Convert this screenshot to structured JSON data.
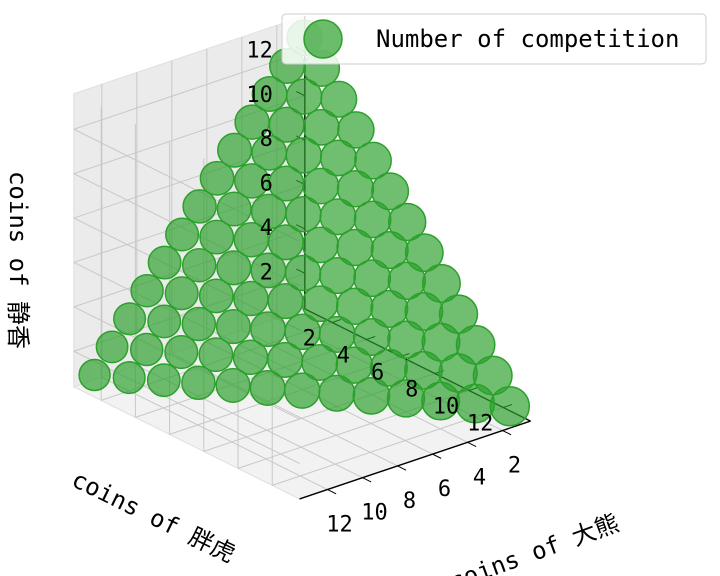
{
  "chart_data": {
    "type": "scatter",
    "projection": "3d",
    "title": "",
    "xlabel": "coins of 胖虎",
    "ylabel": "coins of 大熊",
    "zlabel": "coins of 静香",
    "xticks": [
      "2",
      "4",
      "6",
      "8",
      "10",
      "12"
    ],
    "yticks": [
      "2",
      "4",
      "6",
      "8",
      "10",
      "12"
    ],
    "zticks": [
      "2",
      "4",
      "6",
      "8",
      "10",
      "12"
    ],
    "grid": true,
    "legend": {
      "position": "top-right",
      "entries": [
        "Number of competition"
      ]
    },
    "series": [
      {
        "name": "Number of competition",
        "color": "#2ca02c",
        "marker": "circle",
        "constraint": "x + y + z = 15",
        "points": [
          [
            1,
            1,
            13
          ],
          [
            1,
            2,
            12
          ],
          [
            1,
            3,
            11
          ],
          [
            1,
            4,
            10
          ],
          [
            1,
            5,
            9
          ],
          [
            1,
            6,
            8
          ],
          [
            1,
            7,
            7
          ],
          [
            1,
            8,
            6
          ],
          [
            1,
            9,
            5
          ],
          [
            1,
            10,
            4
          ],
          [
            1,
            11,
            3
          ],
          [
            1,
            12,
            2
          ],
          [
            1,
            13,
            1
          ],
          [
            2,
            1,
            12
          ],
          [
            2,
            2,
            11
          ],
          [
            2,
            3,
            10
          ],
          [
            2,
            4,
            9
          ],
          [
            2,
            5,
            8
          ],
          [
            2,
            6,
            7
          ],
          [
            2,
            7,
            6
          ],
          [
            2,
            8,
            5
          ],
          [
            2,
            9,
            4
          ],
          [
            2,
            10,
            3
          ],
          [
            2,
            11,
            2
          ],
          [
            2,
            12,
            1
          ],
          [
            3,
            1,
            11
          ],
          [
            3,
            2,
            10
          ],
          [
            3,
            3,
            9
          ],
          [
            3,
            4,
            8
          ],
          [
            3,
            5,
            7
          ],
          [
            3,
            6,
            6
          ],
          [
            3,
            7,
            5
          ],
          [
            3,
            8,
            4
          ],
          [
            3,
            9,
            3
          ],
          [
            3,
            10,
            2
          ],
          [
            3,
            11,
            1
          ],
          [
            4,
            1,
            10
          ],
          [
            4,
            2,
            9
          ],
          [
            4,
            3,
            8
          ],
          [
            4,
            4,
            7
          ],
          [
            4,
            5,
            6
          ],
          [
            4,
            6,
            5
          ],
          [
            4,
            7,
            4
          ],
          [
            4,
            8,
            3
          ],
          [
            4,
            9,
            2
          ],
          [
            4,
            10,
            1
          ],
          [
            5,
            1,
            9
          ],
          [
            5,
            2,
            8
          ],
          [
            5,
            3,
            7
          ],
          [
            5,
            4,
            6
          ],
          [
            5,
            5,
            5
          ],
          [
            5,
            6,
            4
          ],
          [
            5,
            7,
            3
          ],
          [
            5,
            8,
            2
          ],
          [
            5,
            9,
            1
          ],
          [
            6,
            1,
            8
          ],
          [
            6,
            2,
            7
          ],
          [
            6,
            3,
            6
          ],
          [
            6,
            4,
            5
          ],
          [
            6,
            5,
            4
          ],
          [
            6,
            6,
            3
          ],
          [
            6,
            7,
            2
          ],
          [
            6,
            8,
            1
          ],
          [
            7,
            1,
            7
          ],
          [
            7,
            2,
            6
          ],
          [
            7,
            3,
            5
          ],
          [
            7,
            4,
            4
          ],
          [
            7,
            5,
            3
          ],
          [
            7,
            6,
            2
          ],
          [
            7,
            7,
            1
          ],
          [
            8,
            1,
            6
          ],
          [
            8,
            2,
            5
          ],
          [
            8,
            3,
            4
          ],
          [
            8,
            4,
            3
          ],
          [
            8,
            5,
            2
          ],
          [
            8,
            6,
            1
          ],
          [
            9,
            1,
            5
          ],
          [
            9,
            2,
            4
          ],
          [
            9,
            3,
            3
          ],
          [
            9,
            4,
            2
          ],
          [
            9,
            5,
            1
          ],
          [
            10,
            1,
            4
          ],
          [
            10,
            2,
            3
          ],
          [
            10,
            3,
            2
          ],
          [
            10,
            4,
            1
          ],
          [
            11,
            1,
            3
          ],
          [
            11,
            2,
            2
          ],
          [
            11,
            3,
            1
          ],
          [
            12,
            1,
            2
          ],
          [
            12,
            2,
            1
          ],
          [
            13,
            1,
            1
          ]
        ]
      }
    ]
  }
}
